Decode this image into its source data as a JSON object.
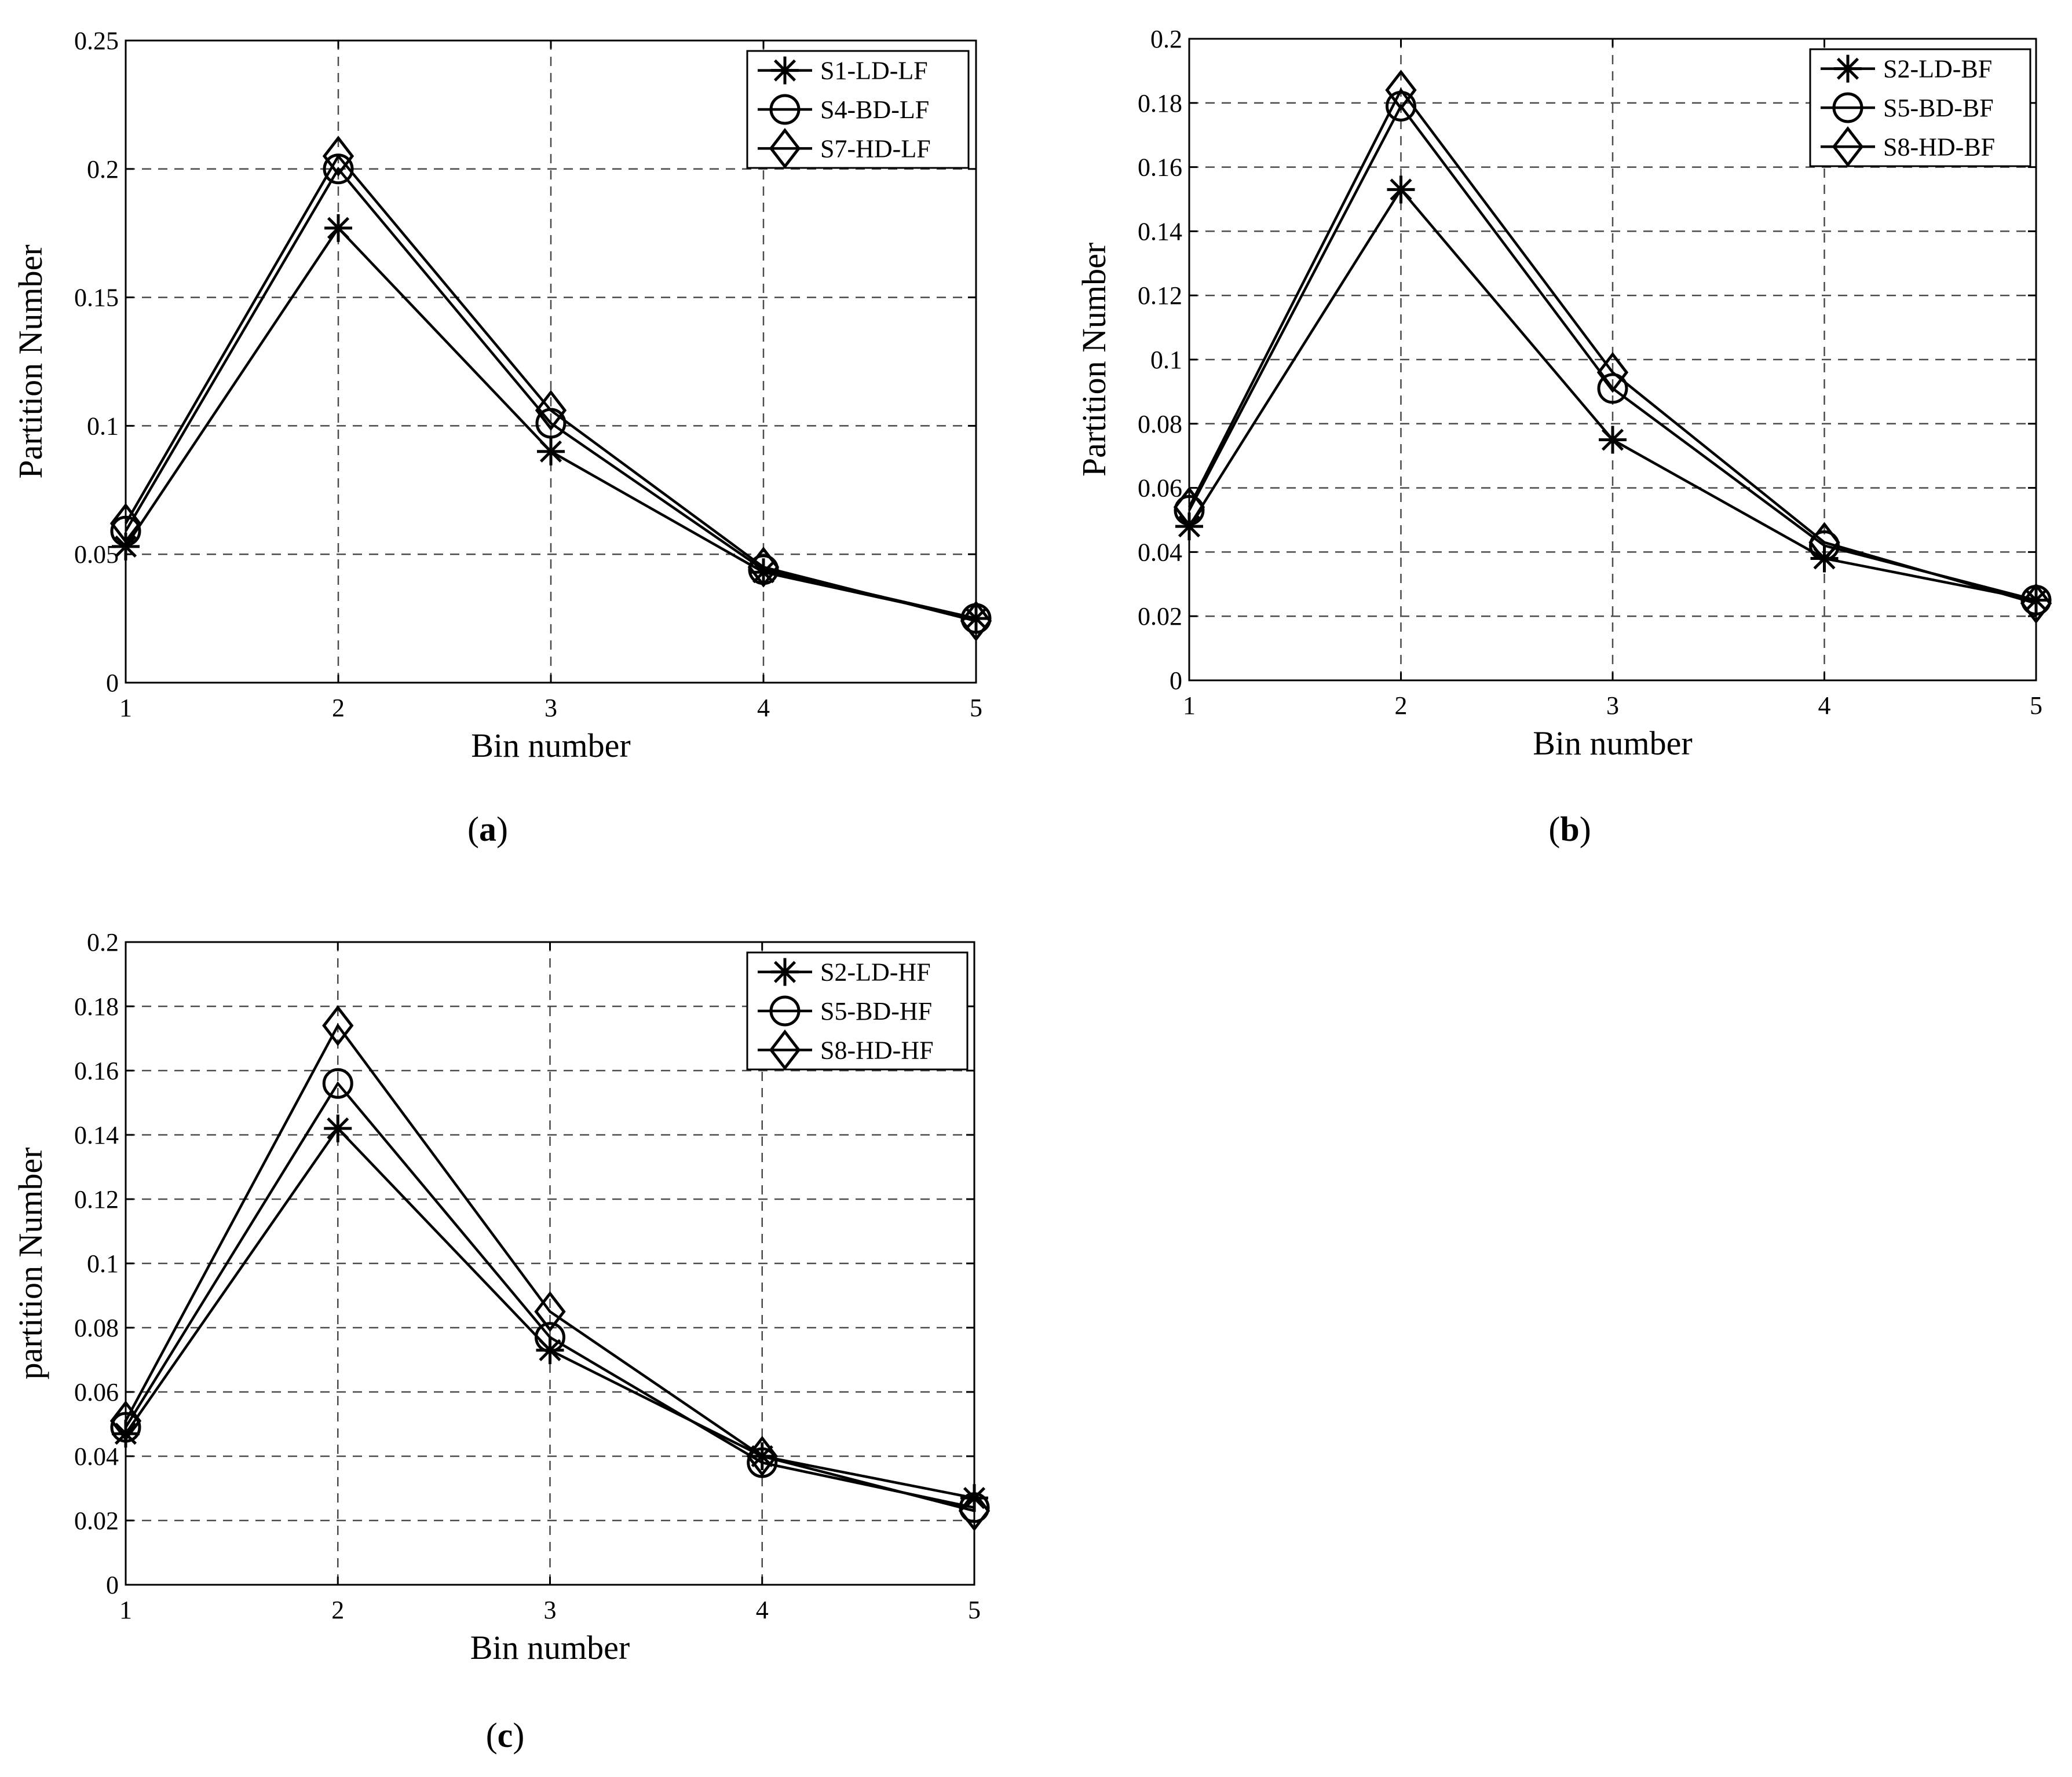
{
  "chart_data": [
    {
      "type": "line",
      "panel": "a",
      "caption_letter": "a",
      "x": [
        1,
        2,
        3,
        4,
        5
      ],
      "xlabel": "Bin number",
      "ylabel": "Partition Number",
      "xlim": [
        1,
        5
      ],
      "ylim": [
        0,
        0.25
      ],
      "xticks": [
        "1",
        "2",
        "3",
        "4",
        "5"
      ],
      "yticks": [
        "0",
        "0.05",
        "0.1",
        "0.15",
        "0.2",
        "0.25"
      ],
      "grid": true,
      "legend_position": "top-right",
      "series": [
        {
          "name": "S1-LD-LF",
          "marker": "asterisk",
          "values": [
            0.053,
            0.177,
            0.09,
            0.043,
            0.025
          ]
        },
        {
          "name": "S4-BD-LF",
          "marker": "circle",
          "values": [
            0.059,
            0.2,
            0.101,
            0.044,
            0.025
          ]
        },
        {
          "name": "S7-HD-LF",
          "marker": "diamond",
          "values": [
            0.062,
            0.205,
            0.106,
            0.045,
            0.024
          ]
        }
      ]
    },
    {
      "type": "line",
      "panel": "b",
      "caption_letter": "b",
      "x": [
        1,
        2,
        3,
        4,
        5
      ],
      "xlabel": "Bin number",
      "ylabel": "Partition Number",
      "xlim": [
        1,
        5
      ],
      "ylim": [
        0,
        0.2
      ],
      "xticks": [
        "1",
        "2",
        "3",
        "4",
        "5"
      ],
      "yticks": [
        "0",
        "0.02",
        "0.04",
        "0.06",
        "0.08",
        "0.1",
        "0.12",
        "0.14",
        "0.16",
        "0.18",
        "0.2"
      ],
      "grid": true,
      "legend_position": "top-right",
      "series": [
        {
          "name": "S2-LD-BF",
          "marker": "asterisk",
          "values": [
            0.048,
            0.153,
            0.075,
            0.038,
            0.025
          ]
        },
        {
          "name": "S5-BD-BF",
          "marker": "circle",
          "values": [
            0.053,
            0.179,
            0.091,
            0.042,
            0.025
          ]
        },
        {
          "name": "S8-HD-BF",
          "marker": "diamond",
          "values": [
            0.054,
            0.184,
            0.096,
            0.043,
            0.024
          ]
        }
      ]
    },
    {
      "type": "line",
      "panel": "c",
      "caption_letter": "c",
      "x": [
        1,
        2,
        3,
        4,
        5
      ],
      "xlabel": "Bin number",
      "ylabel": "partition Number",
      "xlim": [
        1,
        5
      ],
      "ylim": [
        0,
        0.2
      ],
      "xticks": [
        "1",
        "2",
        "3",
        "4",
        "5"
      ],
      "yticks": [
        "0",
        "0.02",
        "0.04",
        "0.06",
        "0.08",
        "0.1",
        "0.12",
        "0.14",
        "0.16",
        "0.18",
        "0.2"
      ],
      "grid": true,
      "legend_position": "top-right",
      "series": [
        {
          "name": "S2-LD-HF",
          "marker": "asterisk",
          "values": [
            0.047,
            0.142,
            0.073,
            0.04,
            0.027
          ]
        },
        {
          "name": "S5-BD-HF",
          "marker": "circle",
          "values": [
            0.049,
            0.156,
            0.077,
            0.038,
            0.024
          ]
        },
        {
          "name": "S8-HD-HF",
          "marker": "diamond",
          "values": [
            0.051,
            0.174,
            0.085,
            0.04,
            0.023
          ]
        }
      ]
    }
  ],
  "style": {
    "line_color": "#000000",
    "grid_color": "#4a4a4a",
    "background": "#ffffff"
  }
}
